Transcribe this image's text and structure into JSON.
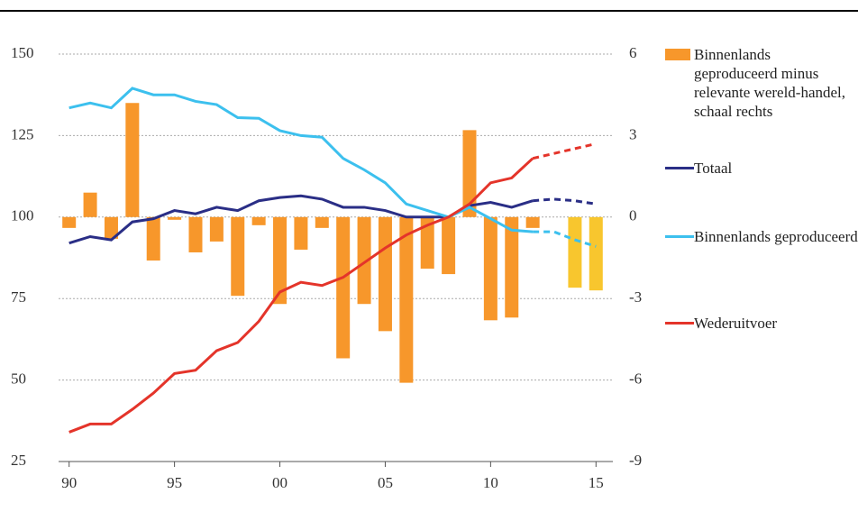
{
  "chart_data": {
    "type": "bar-line",
    "x": [
      1990,
      1991,
      1992,
      1993,
      1994,
      1995,
      1996,
      1997,
      1998,
      1999,
      2000,
      2001,
      2002,
      2003,
      2004,
      2005,
      2006,
      2007,
      2008,
      2009,
      2010,
      2011,
      2012,
      2013,
      2014,
      2015
    ],
    "xlim": [
      1989.5,
      2015.8
    ],
    "xticks": [
      {
        "value": 1990,
        "label": "90"
      },
      {
        "value": 1995,
        "label": "95"
      },
      {
        "value": 2000,
        "label": "00"
      },
      {
        "value": 2005,
        "label": "05"
      },
      {
        "value": 2010,
        "label": "10"
      },
      {
        "value": 2015,
        "label": "15"
      }
    ],
    "ylim": [
      25,
      150
    ],
    "yticks": [
      25,
      50,
      75,
      100,
      125,
      150
    ],
    "y2lim": [
      -9,
      6
    ],
    "y2ticks": [
      -9,
      -6,
      -3,
      0,
      3,
      6
    ],
    "grid": true,
    "legend": "right",
    "forecast_from": 2012,
    "series": [
      {
        "name": "Binnenlands geproduceerd minus relevante wereld-handel, schaal rechts",
        "kind": "bar",
        "axis": "y2",
        "color": "#f7972b",
        "forecast_color": "#f8c62e",
        "values": [
          -0.4,
          0.9,
          -0.8,
          4.2,
          -1.6,
          -0.1,
          -1.3,
          -0.9,
          -2.9,
          -0.3,
          -3.2,
          -1.2,
          -0.4,
          -5.2,
          -3.2,
          -4.2,
          -6.1,
          -1.9,
          -2.1,
          3.2,
          -3.8,
          -3.7,
          -0.4,
          0,
          -2.6,
          -2.7
        ]
      },
      {
        "name": "Totaal",
        "kind": "line",
        "color": "#2a2e86",
        "values": [
          92,
          94,
          93,
          98.5,
          99.5,
          102,
          101,
          103,
          102,
          105,
          106,
          106.5,
          105.5,
          103,
          103,
          102,
          100,
          100,
          100,
          103.5,
          104.5,
          103,
          105,
          105.5,
          105,
          104
        ]
      },
      {
        "name": "Binnenlands geproduceerd",
        "kind": "line",
        "color": "#3cc0ee",
        "values": [
          133.5,
          135,
          133.5,
          139.5,
          137.5,
          137.5,
          135.5,
          134.5,
          130.5,
          130.3,
          126.5,
          125,
          124.5,
          118,
          114.5,
          110.5,
          104,
          102,
          100,
          103,
          99.5,
          96,
          95.5,
          95.5,
          93,
          91
        ]
      },
      {
        "name": "Wederuitvoer",
        "kind": "line",
        "color": "#e4342a",
        "values": [
          34,
          36.5,
          36.5,
          41,
          46,
          52,
          53,
          59,
          61.5,
          68,
          77,
          80,
          79,
          81.5,
          86,
          90.5,
          94.5,
          97.5,
          100,
          104,
          110.5,
          112,
          118,
          119.5,
          121,
          122.5
        ]
      }
    ]
  }
}
